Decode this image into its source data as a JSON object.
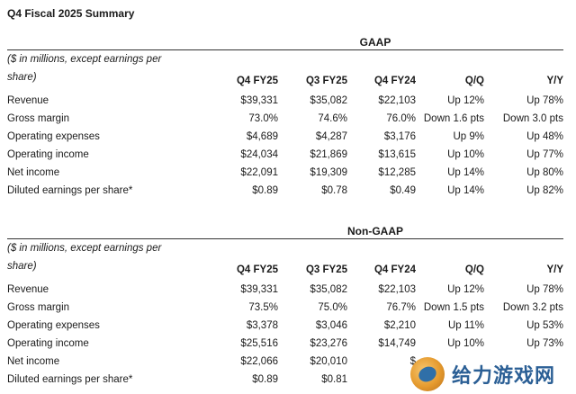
{
  "title": "Q4 Fiscal 2025 Summary",
  "columns": [
    "Q4 FY25",
    "Q3 FY25",
    "Q4 FY24",
    "Q/Q",
    "Y/Y"
  ],
  "note": "($ in millions, except earnings per share)",
  "gaap": {
    "heading": "GAAP",
    "rows": [
      {
        "label": "Revenue",
        "q4fy25": "$39,331",
        "q3fy25": "$35,082",
        "q4fy24": "$22,103",
        "qq": "Up 12%",
        "yy": "Up 78%"
      },
      {
        "label": "Gross margin",
        "q4fy25": "73.0%",
        "q3fy25": "74.6%",
        "q4fy24": "76.0%",
        "qq": "Down 1.6 pts",
        "yy": "Down 3.0 pts"
      },
      {
        "label": "Operating expenses",
        "q4fy25": "$4,689",
        "q3fy25": "$4,287",
        "q4fy24": "$3,176",
        "qq": "Up 9%",
        "yy": "Up 48%"
      },
      {
        "label": "Operating income",
        "q4fy25": "$24,034",
        "q3fy25": "$21,869",
        "q4fy24": "$13,615",
        "qq": "Up 10%",
        "yy": "Up 77%"
      },
      {
        "label": "Net income",
        "q4fy25": "$22,091",
        "q3fy25": "$19,309",
        "q4fy24": "$12,285",
        "qq": "Up 14%",
        "yy": "Up 80%"
      },
      {
        "label": "Diluted earnings per share*",
        "q4fy25": "$0.89",
        "q3fy25": "$0.78",
        "q4fy24": "$0.49",
        "qq": "Up 14%",
        "yy": "Up 82%"
      }
    ]
  },
  "nongaap": {
    "heading": "Non-GAAP",
    "rows": [
      {
        "label": "Revenue",
        "q4fy25": "$39,331",
        "q3fy25": "$35,082",
        "q4fy24": "$22,103",
        "qq": "Up 12%",
        "yy": "Up 78%"
      },
      {
        "label": "Gross margin",
        "q4fy25": "73.5%",
        "q3fy25": "75.0%",
        "q4fy24": "76.7%",
        "qq": "Down 1.5 pts",
        "yy": "Down 3.2 pts"
      },
      {
        "label": "Operating expenses",
        "q4fy25": "$3,378",
        "q3fy25": "$3,046",
        "q4fy24": "$2,210",
        "qq": "Up 11%",
        "yy": "Up 53%"
      },
      {
        "label": "Operating income",
        "q4fy25": "$25,516",
        "q3fy25": "$23,276",
        "q4fy24": "$14,749",
        "qq": "Up 10%",
        "yy": "Up 73%"
      },
      {
        "label": "Net income",
        "q4fy25": "$22,066",
        "q3fy25": "$20,010",
        "q4fy24": "$",
        "qq": "",
        "yy": ""
      },
      {
        "label": "Diluted earnings per share*",
        "q4fy25": "$0.89",
        "q3fy25": "$0.81",
        "q4fy24": "",
        "qq": "",
        "yy": ""
      }
    ]
  },
  "watermark": {
    "text": "给力游戏网",
    "logo_icon": "game-site-logo-icon",
    "text_color": "#2b5f95"
  }
}
